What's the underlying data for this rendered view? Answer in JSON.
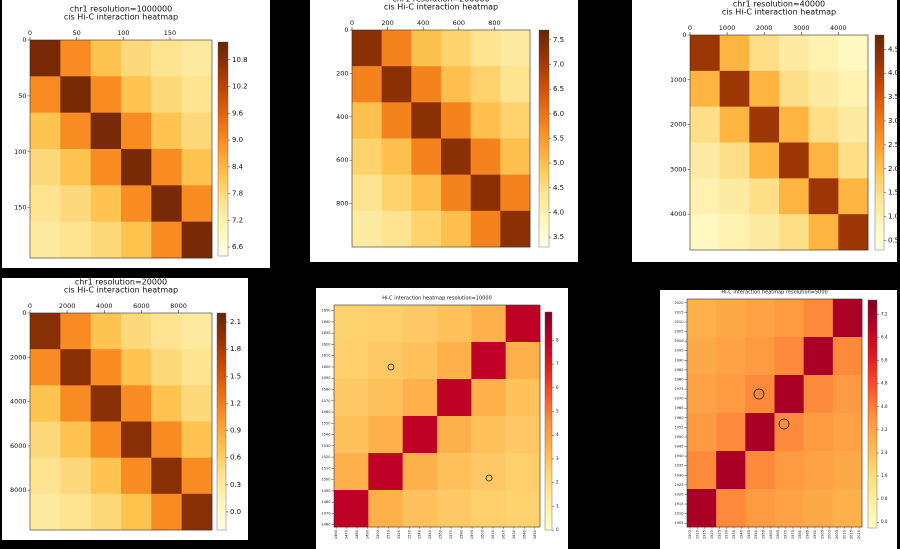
{
  "chart_data": [
    {
      "type": "heatmap",
      "title": "chr1 resolution=1000000",
      "subtitle": "cis Hi-C interaction heatmap",
      "xlim": [
        0,
        195
      ],
      "ylim": [
        0,
        195
      ],
      "xticks": [
        0,
        50,
        100,
        150
      ],
      "yticks": [
        0,
        50,
        100,
        150
      ],
      "yaxis_inverted": true,
      "x_ticks_top": true,
      "values": [
        [
          11,
          9,
          8.2,
          7.8,
          7.6,
          7.4
        ],
        [
          9,
          11,
          9,
          8.2,
          7.8,
          7.6
        ],
        [
          8.2,
          9,
          11,
          9,
          8.2,
          7.8
        ],
        [
          7.8,
          8.2,
          9,
          11,
          9,
          8.2
        ],
        [
          7.6,
          7.8,
          8.2,
          9,
          11,
          9
        ],
        [
          7.4,
          7.6,
          7.8,
          8.2,
          9,
          11
        ]
      ],
      "clim": [
        6.4,
        11.2
      ],
      "cticks": [
        6.6,
        7.2,
        7.8,
        8.4,
        {
          "value": 9,
          "label": "9.0"
        },
        9.6,
        10.2,
        10.8
      ],
      "colors": [
        "#ffffe5",
        "#fff7bc",
        "#fee391",
        "#fec44f",
        "#fe9929",
        "#ec7014",
        "#cc4c02",
        "#993404",
        "#662506"
      ]
    },
    {
      "type": "heatmap",
      "title": "chr1 resolution=200000",
      "subtitle": "cis Hi-C interaction heatmap",
      "xlim": [
        0,
        1000
      ],
      "ylim": [
        0,
        1000
      ],
      "xticks": [
        0,
        200,
        400,
        600,
        800
      ],
      "yticks": [
        0,
        200,
        400,
        600,
        800
      ],
      "yaxis_inverted": true,
      "x_ticks_top": true,
      "values": [
        [
          7.3,
          5.8,
          5.0,
          4.7,
          4.4,
          4.2
        ],
        [
          5.8,
          7.3,
          5.8,
          5.0,
          4.7,
          4.4
        ],
        [
          5.0,
          5.8,
          7.3,
          5.8,
          5.0,
          4.7
        ],
        [
          4.7,
          5.0,
          5.8,
          7.3,
          5.8,
          5.0
        ],
        [
          4.4,
          4.7,
          5.0,
          5.8,
          7.3,
          5.8
        ],
        [
          4.2,
          4.4,
          4.7,
          5.0,
          5.8,
          7.3
        ]
      ],
      "clim": [
        3.3,
        7.7
      ],
      "cticks": [
        3.5,
        {
          "value": 4,
          "label": "4.0"
        },
        4.5,
        {
          "value": 5,
          "label": "5.0"
        },
        5.5,
        {
          "value": 6,
          "label": "6.0"
        },
        6.5,
        {
          "value": 7,
          "label": "7.0"
        },
        7.5
      ],
      "colors": [
        "#ffffe5",
        "#fff7bc",
        "#fee391",
        "#fec44f",
        "#fe9929",
        "#ec7014",
        "#cc4c02",
        "#993404",
        "#662506"
      ]
    },
    {
      "type": "heatmap",
      "title": "chr1 resolution=40000",
      "subtitle": "cis Hi-C interaction heatmap",
      "xlim": [
        0,
        4800
      ],
      "ylim": [
        0,
        4800
      ],
      "xticks": [
        0,
        1000,
        2000,
        3000,
        4000
      ],
      "yticks": [
        0,
        1000,
        2000,
        3000,
        4000
      ],
      "yaxis_inverted": true,
      "x_ticks_top": true,
      "values": [
        [
          4.2,
          2.2,
          1.5,
          1.2,
          1.0,
          0.8
        ],
        [
          2.2,
          4.2,
          2.2,
          1.5,
          1.2,
          1.0
        ],
        [
          1.5,
          2.2,
          4.2,
          2.2,
          1.5,
          1.2
        ],
        [
          1.2,
          1.5,
          2.2,
          4.2,
          2.2,
          1.5
        ],
        [
          1.0,
          1.2,
          1.5,
          2.2,
          4.2,
          2.2
        ],
        [
          0.8,
          1.0,
          1.2,
          1.5,
          2.2,
          4.2
        ]
      ],
      "clim": [
        0.3,
        4.8
      ],
      "cticks": [
        0.5,
        {
          "value": 1,
          "label": "1.0"
        },
        1.5,
        {
          "value": 2,
          "label": "2.0"
        },
        2.5,
        {
          "value": 3,
          "label": "3.0"
        },
        3.5,
        {
          "value": 4,
          "label": "4.0"
        },
        4.5
      ],
      "colors": [
        "#ffffe5",
        "#fff7bc",
        "#fee391",
        "#fec44f",
        "#fe9929",
        "#ec7014",
        "#cc4c02",
        "#993404",
        "#662506"
      ]
    },
    {
      "type": "heatmap",
      "title": "chr1 resolution=20000",
      "subtitle": "cis Hi-C interaction heatmap",
      "xlim": [
        0,
        9800
      ],
      "ylim": [
        0,
        9800
      ],
      "xticks": [
        0,
        2000,
        4000,
        6000,
        8000
      ],
      "yticks": [
        0,
        2000,
        4000,
        6000,
        8000
      ],
      "yaxis_inverted": true,
      "x_ticks_top": true,
      "values": [
        [
          2.0,
          1.1,
          0.7,
          0.5,
          0.4,
          0.3
        ],
        [
          1.1,
          2.0,
          1.1,
          0.7,
          0.5,
          0.4
        ],
        [
          0.7,
          1.1,
          2.0,
          1.1,
          0.7,
          0.5
        ],
        [
          0.5,
          0.7,
          1.1,
          2.0,
          1.1,
          0.7
        ],
        [
          0.4,
          0.5,
          0.7,
          1.1,
          2.0,
          1.1
        ],
        [
          0.3,
          0.4,
          0.5,
          0.7,
          1.1,
          2.0
        ]
      ],
      "clim": [
        -0.2,
        2.2
      ],
      "cticks": [
        {
          "value": 0,
          "label": "0.0"
        },
        0.3,
        0.6,
        0.9,
        1.2,
        1.5,
        1.8,
        2.1
      ],
      "colors": [
        "#ffffe5",
        "#fff7bc",
        "#fee391",
        "#fec44f",
        "#fe9929",
        "#ec7014",
        "#cc4c02",
        "#993404",
        "#662506"
      ]
    },
    {
      "type": "heatmap",
      "title": "Hi-C interaction heatmap resolution=10000",
      "xlim": [
        1458,
        1655
      ],
      "ylim": [
        1458,
        1655
      ],
      "xticks": [
        1460,
        1470,
        1480,
        1490,
        1500,
        1510,
        1520,
        1530,
        1540,
        1550,
        1560,
        1570,
        1580,
        1590,
        1600,
        1610,
        1620,
        1630,
        1640,
        1650
      ],
      "yticks": [
        1460,
        1470,
        1480,
        1490,
        1500,
        1510,
        1520,
        1530,
        1540,
        1550,
        1560,
        1570,
        1580,
        1590,
        1600,
        1610,
        1620,
        1630,
        1640,
        1650
      ],
      "yaxis_inverted": false,
      "x_ticks_top": false,
      "values": [
        [
          2.5,
          2.6,
          2.8,
          3,
          3.5,
          8
        ],
        [
          2.6,
          2.8,
          3,
          3.5,
          8,
          3.5
        ],
        [
          2.8,
          3,
          3.5,
          8,
          3.5,
          3
        ],
        [
          3,
          3.5,
          8,
          3.5,
          3,
          2.8
        ],
        [
          3.5,
          8,
          3.5,
          3,
          2.8,
          2.6
        ],
        [
          8,
          3.5,
          3,
          2.8,
          2.6,
          2.5
        ]
      ],
      "clim": [
        0,
        9.2
      ],
      "cticks": [
        0,
        1,
        2,
        3,
        4,
        5,
        6,
        7,
        8
      ],
      "colors": [
        "#ffffcc",
        "#ffeda0",
        "#fed976",
        "#feb24c",
        "#fd8d3c",
        "#fc4e2a",
        "#e31a1c",
        "#bd0026",
        "#800026"
      ]
    },
    {
      "type": "heatmap",
      "title": "Hi-C interaction heatmap resolution=5000",
      "xlim": [
        1903,
        2022
      ],
      "ylim": [
        1903,
        2022
      ],
      "xticks": [
        1905,
        1910,
        1915,
        1920,
        1925,
        1930,
        1935,
        1940,
        1945,
        1950,
        1955,
        1960,
        1965,
        1970,
        1975,
        1980,
        1985,
        1990,
        1995,
        2000,
        2005,
        2010,
        2015,
        2020
      ],
      "yticks": [
        1905,
        1910,
        1915,
        1920,
        1925,
        1930,
        1935,
        1940,
        1945,
        1950,
        1955,
        1960,
        1965,
        1970,
        1975,
        1980,
        1985,
        1990,
        1995,
        2000,
        2005,
        2010,
        2015,
        2020
      ],
      "yaxis_inverted": false,
      "x_ticks_top": false,
      "values": [
        [
          2.8,
          3.0,
          3.2,
          3.4,
          3.8,
          7
        ],
        [
          3.0,
          3.2,
          3.4,
          3.8,
          7,
          3.8
        ],
        [
          3.2,
          3.4,
          3.8,
          7,
          3.8,
          3.4
        ],
        [
          3.4,
          3.8,
          7,
          3.8,
          3.4,
          3.2
        ],
        [
          3.8,
          7,
          3.8,
          3.4,
          3.2,
          3.0
        ],
        [
          7,
          3.8,
          3.4,
          3.2,
          3.0,
          2.8
        ]
      ],
      "clim": [
        -0.2,
        7.7
      ],
      "cticks": [
        {
          "value": 0,
          "label": "0.0"
        },
        0.8,
        1.6,
        2.4,
        3.2,
        {
          "value": 4,
          "label": "4.0"
        },
        4.8,
        5.6,
        6.4,
        7.2
      ],
      "colors": [
        "#ffffcc",
        "#ffeda0",
        "#fed976",
        "#feb24c",
        "#fd8d3c",
        "#fc4e2a",
        "#e31a1c",
        "#bd0026",
        "#800026"
      ]
    }
  ]
}
